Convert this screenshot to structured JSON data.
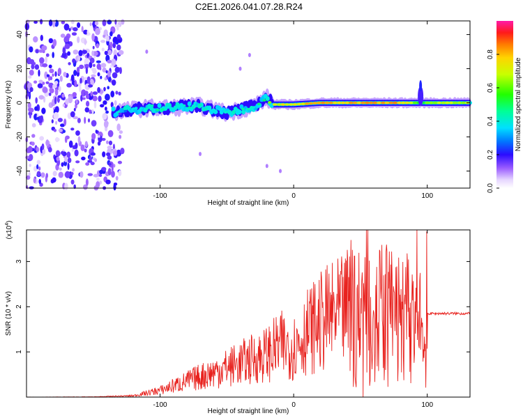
{
  "title": "C2E1.2026.041.07.28.R24",
  "chart_data": [
    {
      "type": "heatmap",
      "name": "spectrogram",
      "xlabel": "Height of straight line (km)",
      "ylabel": "Frequency (Hz)",
      "xlim": [
        -200,
        132
      ],
      "ylim": [
        -50,
        48
      ],
      "xticks": [
        -100,
        0,
        100
      ],
      "yticks": [
        -40,
        -20,
        0,
        20,
        40
      ],
      "colorbar": {
        "label": "Normalized spectral amplitude",
        "range": [
          0,
          1
        ],
        "ticks": [
          0.0,
          0.2,
          0.4,
          0.6,
          0.8
        ]
      },
      "ridge": [
        {
          "x": -130,
          "y": -5,
          "amp": 0.18
        },
        {
          "x": -120,
          "y": -4,
          "amp": 0.35
        },
        {
          "x": -110,
          "y": -3,
          "amp": 0.4
        },
        {
          "x": -100,
          "y": -3,
          "amp": 0.42
        },
        {
          "x": -90,
          "y": -3,
          "amp": 0.4
        },
        {
          "x": -80,
          "y": -2,
          "amp": 0.42
        },
        {
          "x": -70,
          "y": -2,
          "amp": 0.4
        },
        {
          "x": -60,
          "y": -4,
          "amp": 0.42
        },
        {
          "x": -50,
          "y": -6,
          "amp": 0.4
        },
        {
          "x": -40,
          "y": -4,
          "amp": 0.42
        },
        {
          "x": -30,
          "y": -2,
          "amp": 0.45
        },
        {
          "x": -20,
          "y": 3,
          "amp": 0.55
        },
        {
          "x": -15,
          "y": -1,
          "amp": 0.7
        },
        {
          "x": 0,
          "y": -1,
          "amp": 0.75
        },
        {
          "x": 20,
          "y": 0,
          "amp": 0.8
        },
        {
          "x": 40,
          "y": 0,
          "amp": 0.8
        },
        {
          "x": 60,
          "y": 0,
          "amp": 0.8
        },
        {
          "x": 80,
          "y": 0,
          "amp": 0.82
        },
        {
          "x": 95,
          "y": 0,
          "amp": 0.5
        },
        {
          "x": 100,
          "y": 0,
          "amp": 0.65
        },
        {
          "x": 132,
          "y": 0,
          "amp": 0.65
        }
      ]
    },
    {
      "type": "line",
      "name": "snr",
      "xlabel": "Height of straight line (km)",
      "ylabel": "SNR (10 * v/v)",
      "y_scale_label": "(x10",
      "y_scale_exponent": "4",
      "xlim": [
        -200,
        132
      ],
      "ylim": [
        0,
        37000
      ],
      "xticks": [
        -100,
        0,
        100
      ],
      "yticks": [
        1,
        2,
        3
      ],
      "color": "#e8221e",
      "series": [
        {
          "name": "SNR",
          "x": [
            -200,
            -150,
            -120,
            -100,
            -80,
            -60,
            -40,
            -20,
            -10,
            0,
            10,
            25,
            40,
            50,
            55,
            60,
            70,
            80,
            90,
            95,
            98,
            100,
            110,
            132
          ],
          "y": [
            0,
            50,
            300,
            1500,
            3500,
            5500,
            7500,
            9500,
            11500,
            11000,
            14500,
            17500,
            19000,
            18000,
            20000,
            17500,
            18500,
            17000,
            17500,
            15000,
            10000,
            18500,
            18500,
            18500
          ]
        }
      ]
    }
  ]
}
